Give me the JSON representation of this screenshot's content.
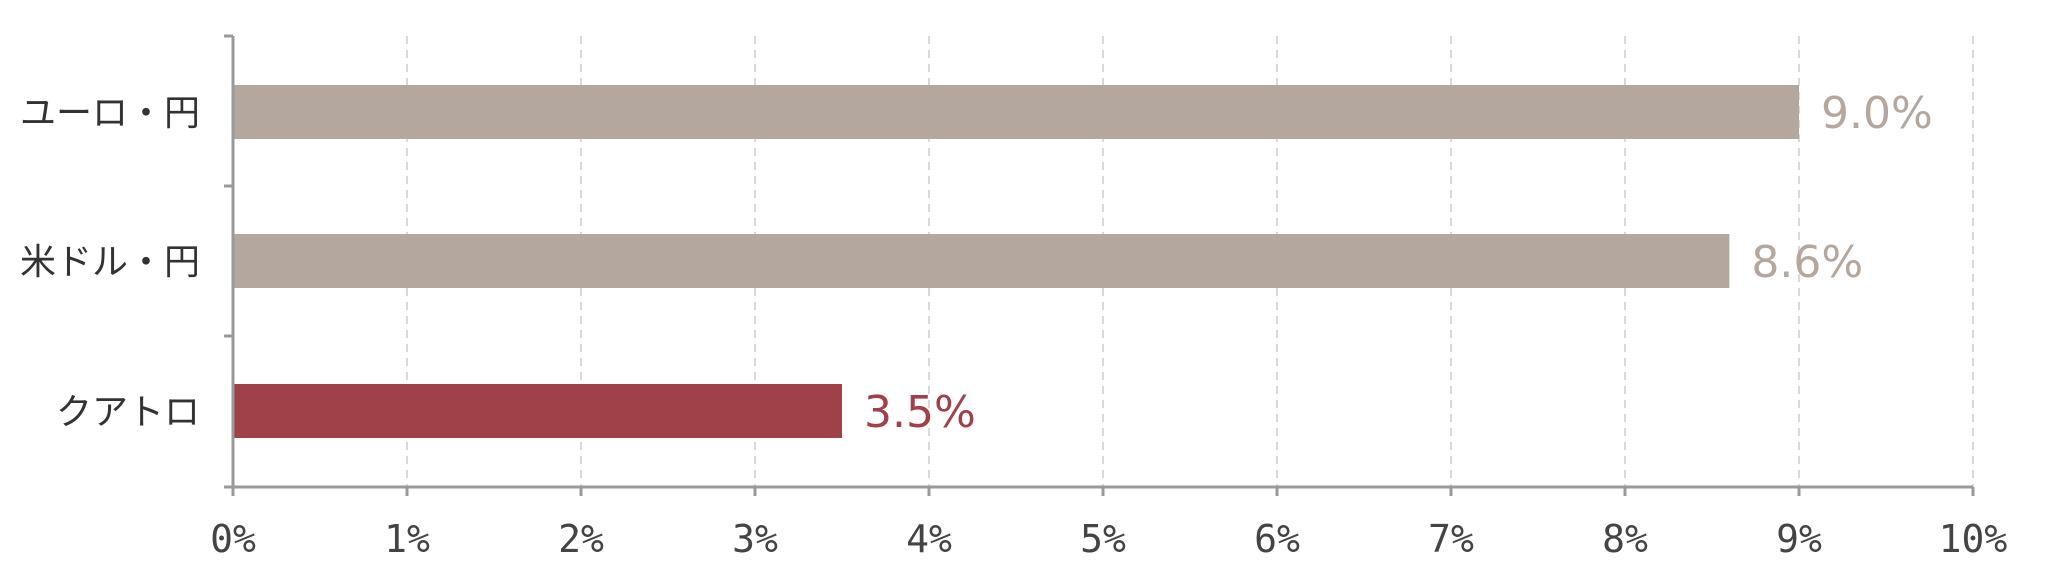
{
  "chart_data": {
    "type": "bar",
    "orientation": "horizontal",
    "categories": [
      "ユーロ・円",
      "米ドル・円",
      "クアトロ"
    ],
    "values": [
      9.0,
      8.6,
      3.5
    ],
    "value_labels": [
      "9.0%",
      "8.6%",
      "3.5%"
    ],
    "title": "",
    "xlabel": "",
    "ylabel": "",
    "xlim": [
      0,
      10
    ],
    "x_ticks": [
      0,
      1,
      2,
      3,
      4,
      5,
      6,
      7,
      8,
      9,
      10
    ],
    "x_tick_labels": [
      "0%",
      "1%",
      "2%",
      "3%",
      "4%",
      "5%",
      "6%",
      "7%",
      "8%",
      "9%",
      "10%"
    ],
    "grid": "vertical dashed",
    "legend": "none",
    "colors": {
      "ユーロ・円": "#b3a79e",
      "米ドル・円": "#b3a79e",
      "クアトロ": "#a04049"
    },
    "label_colors": {
      "ユーロ・円": "#b3a79e",
      "米ドル・円": "#b3a79e",
      "クアトロ": "#a04049"
    },
    "axis_color": "#999999",
    "grid_color": "#d9d9d9"
  }
}
